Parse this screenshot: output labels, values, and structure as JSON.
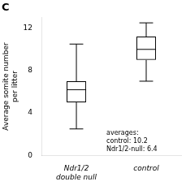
{
  "chart_data": {
    "type": "box",
    "title": "C",
    "ylabel": "Average somite number\nper litter",
    "categories": [
      "Ndr1/2\ndouble null",
      "control"
    ],
    "values": [
      {
        "whisker_low": 2.5,
        "q1": 5.0,
        "median": 6.2,
        "q3": 7.0,
        "whisker_high": 10.5
      },
      {
        "whisker_low": 7.0,
        "q1": 9.0,
        "median": 10.0,
        "q3": 11.2,
        "whisker_high": 12.5
      }
    ],
    "color": "#000000",
    "ylim": [
      0,
      13
    ],
    "yticks": [
      0,
      4,
      8,
      12
    ],
    "grid": false,
    "annotations": [
      "averages:",
      "control: 10.2",
      "Ndr1/2-null: 6.4"
    ]
  }
}
